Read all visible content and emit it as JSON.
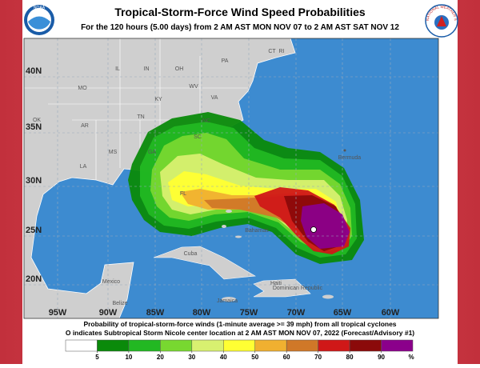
{
  "header": {
    "title": "Tropical-Storm-Force Wind Speed Probabilities",
    "subtitle": "For the 120 hours (5.00 days) from 2 AM AST MON NOV 07 to 2 AM AST SAT NOV 12",
    "logo_left": "NOAA",
    "logo_right": "NATIONAL WEATHER SERVICE"
  },
  "map": {
    "latitude_labels": [
      "40N",
      "35N",
      "30N",
      "25N",
      "20N"
    ],
    "longitude_labels": [
      "95W",
      "90W",
      "85W",
      "80W",
      "75W",
      "70W",
      "65W",
      "60W"
    ],
    "place_labels": [
      "PA",
      "OH",
      "IN",
      "IL",
      "CT",
      "RI",
      "MO",
      "KY",
      "WV",
      "VA",
      "NC",
      "TN",
      "SC",
      "AR",
      "OK",
      "MS",
      "GA",
      "LA",
      "FL",
      "Bermuda",
      "Bahamas",
      "Cuba",
      "Mexico",
      "Belize",
      "Jamaica",
      "Haiti",
      "Dominican Republic"
    ]
  },
  "caption": [
    "Probability of tropical-storm-force winds (1-minute average >= 39 mph) from all tropical cyclones",
    "O indicates Subtropical Storm Nicole center location at 2 AM AST MON NOV 07, 2022 (Forecast/Advisory #1)"
  ],
  "legend": {
    "colors": [
      "#ffffff",
      "#0a8a0a",
      "#22b822",
      "#78d830",
      "#d8f070",
      "#ffff33",
      "#f0b030",
      "#d07828",
      "#d01818",
      "#8b0a0a",
      "#8b008b"
    ],
    "ticks": [
      5,
      10,
      20,
      30,
      40,
      50,
      60,
      70,
      80,
      90
    ],
    "unit": "%"
  }
}
